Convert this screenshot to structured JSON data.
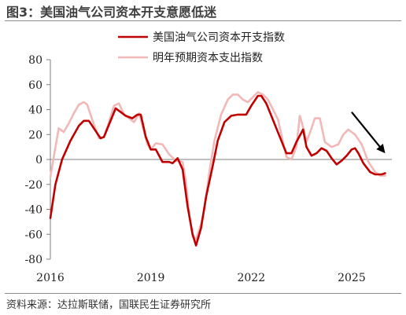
{
  "figure": {
    "title": "图3：美国油气公司资本开支意愿低迷",
    "source": "资料来源：达拉斯联储，国联民生证券研究所"
  },
  "colors": {
    "series1": "#c00000",
    "series2": "#f2b8b8",
    "axis": "#7f7f7f",
    "arrow": "#000000"
  },
  "chart_data": {
    "type": "line",
    "title": "",
    "xlabel": "",
    "ylabel": "",
    "xlim": [
      2016.0,
      2026.2
    ],
    "ylim": [
      -80,
      80
    ],
    "yticks": [
      -80,
      -60,
      -40,
      -20,
      0,
      20,
      40,
      60,
      80
    ],
    "xticks": [
      2016,
      2019,
      2022,
      2025
    ],
    "grid": false,
    "legend_position": "top-right",
    "series": [
      {
        "name": "美国油气公司资本开支指数",
        "points": [
          [
            2016.0,
            -47
          ],
          [
            2016.15,
            -20
          ],
          [
            2016.35,
            0
          ],
          [
            2016.6,
            15
          ],
          [
            2016.85,
            27
          ],
          [
            2017.0,
            31
          ],
          [
            2017.15,
            31
          ],
          [
            2017.3,
            25
          ],
          [
            2017.5,
            17
          ],
          [
            2017.6,
            18
          ],
          [
            2017.75,
            28
          ],
          [
            2017.95,
            41
          ],
          [
            2018.1,
            38
          ],
          [
            2018.25,
            35
          ],
          [
            2018.45,
            33
          ],
          [
            2018.6,
            36
          ],
          [
            2018.7,
            36
          ],
          [
            2018.85,
            18
          ],
          [
            2019.0,
            8
          ],
          [
            2019.15,
            8
          ],
          [
            2019.35,
            -2
          ],
          [
            2019.55,
            -2
          ],
          [
            2019.65,
            -3
          ],
          [
            2019.8,
            1
          ],
          [
            2019.95,
            -8
          ],
          [
            2020.1,
            -38
          ],
          [
            2020.25,
            -60
          ],
          [
            2020.35,
            -69
          ],
          [
            2020.5,
            -55
          ],
          [
            2020.65,
            -30
          ],
          [
            2020.85,
            -5
          ],
          [
            2021.0,
            15
          ],
          [
            2021.2,
            30
          ],
          [
            2021.4,
            35
          ],
          [
            2021.6,
            36
          ],
          [
            2021.85,
            36
          ],
          [
            2022.0,
            43
          ],
          [
            2022.2,
            51
          ],
          [
            2022.3,
            51
          ],
          [
            2022.45,
            45
          ],
          [
            2022.6,
            35
          ],
          [
            2022.75,
            25
          ],
          [
            2022.9,
            15
          ],
          [
            2023.05,
            5
          ],
          [
            2023.2,
            5
          ],
          [
            2023.35,
            14
          ],
          [
            2023.55,
            24
          ],
          [
            2023.65,
            10
          ],
          [
            2023.8,
            3
          ],
          [
            2023.95,
            5
          ],
          [
            2024.1,
            9
          ],
          [
            2024.25,
            7
          ],
          [
            2024.4,
            1
          ],
          [
            2024.55,
            -4
          ],
          [
            2024.7,
            -1
          ],
          [
            2024.85,
            3
          ],
          [
            2025.0,
            8
          ],
          [
            2025.1,
            9
          ],
          [
            2025.2,
            5
          ],
          [
            2025.35,
            -3
          ],
          [
            2025.55,
            -10
          ],
          [
            2025.7,
            -12
          ],
          [
            2025.9,
            -12
          ],
          [
            2026.0,
            -11
          ]
        ]
      },
      {
        "name": "明年预期资本支出指数",
        "points": [
          [
            2016.0,
            -14
          ],
          [
            2016.1,
            2
          ],
          [
            2016.25,
            25
          ],
          [
            2016.4,
            22
          ],
          [
            2016.55,
            29
          ],
          [
            2016.7,
            37
          ],
          [
            2016.85,
            44
          ],
          [
            2017.0,
            46
          ],
          [
            2017.1,
            44
          ],
          [
            2017.25,
            32
          ],
          [
            2017.45,
            17
          ],
          [
            2017.6,
            18
          ],
          [
            2017.75,
            30
          ],
          [
            2017.9,
            43
          ],
          [
            2018.05,
            45
          ],
          [
            2018.2,
            36
          ],
          [
            2018.35,
            33
          ],
          [
            2018.5,
            30
          ],
          [
            2018.65,
            37
          ],
          [
            2018.75,
            27
          ],
          [
            2018.9,
            12
          ],
          [
            2019.0,
            8
          ],
          [
            2019.15,
            13
          ],
          [
            2019.35,
            12
          ],
          [
            2019.55,
            4
          ],
          [
            2019.75,
            -1
          ],
          [
            2019.95,
            -2
          ],
          [
            2020.05,
            -18
          ],
          [
            2020.15,
            -45
          ],
          [
            2020.25,
            -62
          ],
          [
            2020.35,
            -64
          ],
          [
            2020.5,
            -52
          ],
          [
            2020.6,
            -40
          ],
          [
            2020.75,
            -10
          ],
          [
            2020.9,
            15
          ],
          [
            2021.1,
            36
          ],
          [
            2021.3,
            48
          ],
          [
            2021.45,
            52
          ],
          [
            2021.6,
            52
          ],
          [
            2021.75,
            48
          ],
          [
            2021.9,
            46
          ],
          [
            2022.05,
            50
          ],
          [
            2022.2,
            54
          ],
          [
            2022.35,
            52
          ],
          [
            2022.5,
            48
          ],
          [
            2022.65,
            40
          ],
          [
            2022.8,
            32
          ],
          [
            2022.95,
            14
          ],
          [
            2023.05,
            2
          ],
          [
            2023.2,
            0
          ],
          [
            2023.35,
            10
          ],
          [
            2023.45,
            35
          ],
          [
            2023.55,
            26
          ],
          [
            2023.65,
            14
          ],
          [
            2023.8,
            25
          ],
          [
            2023.9,
            33
          ],
          [
            2024.05,
            33
          ],
          [
            2024.2,
            14
          ],
          [
            2024.4,
            10
          ],
          [
            2024.6,
            12
          ],
          [
            2024.75,
            20
          ],
          [
            2024.9,
            24
          ],
          [
            2025.1,
            20
          ],
          [
            2025.3,
            12
          ],
          [
            2025.5,
            -2
          ],
          [
            2025.7,
            -10
          ],
          [
            2025.85,
            -13
          ],
          [
            2026.0,
            -13
          ]
        ]
      }
    ],
    "annotations": [
      {
        "type": "arrow",
        "from": [
          2025.0,
          38
        ],
        "to": [
          2026.0,
          5
        ]
      }
    ]
  }
}
